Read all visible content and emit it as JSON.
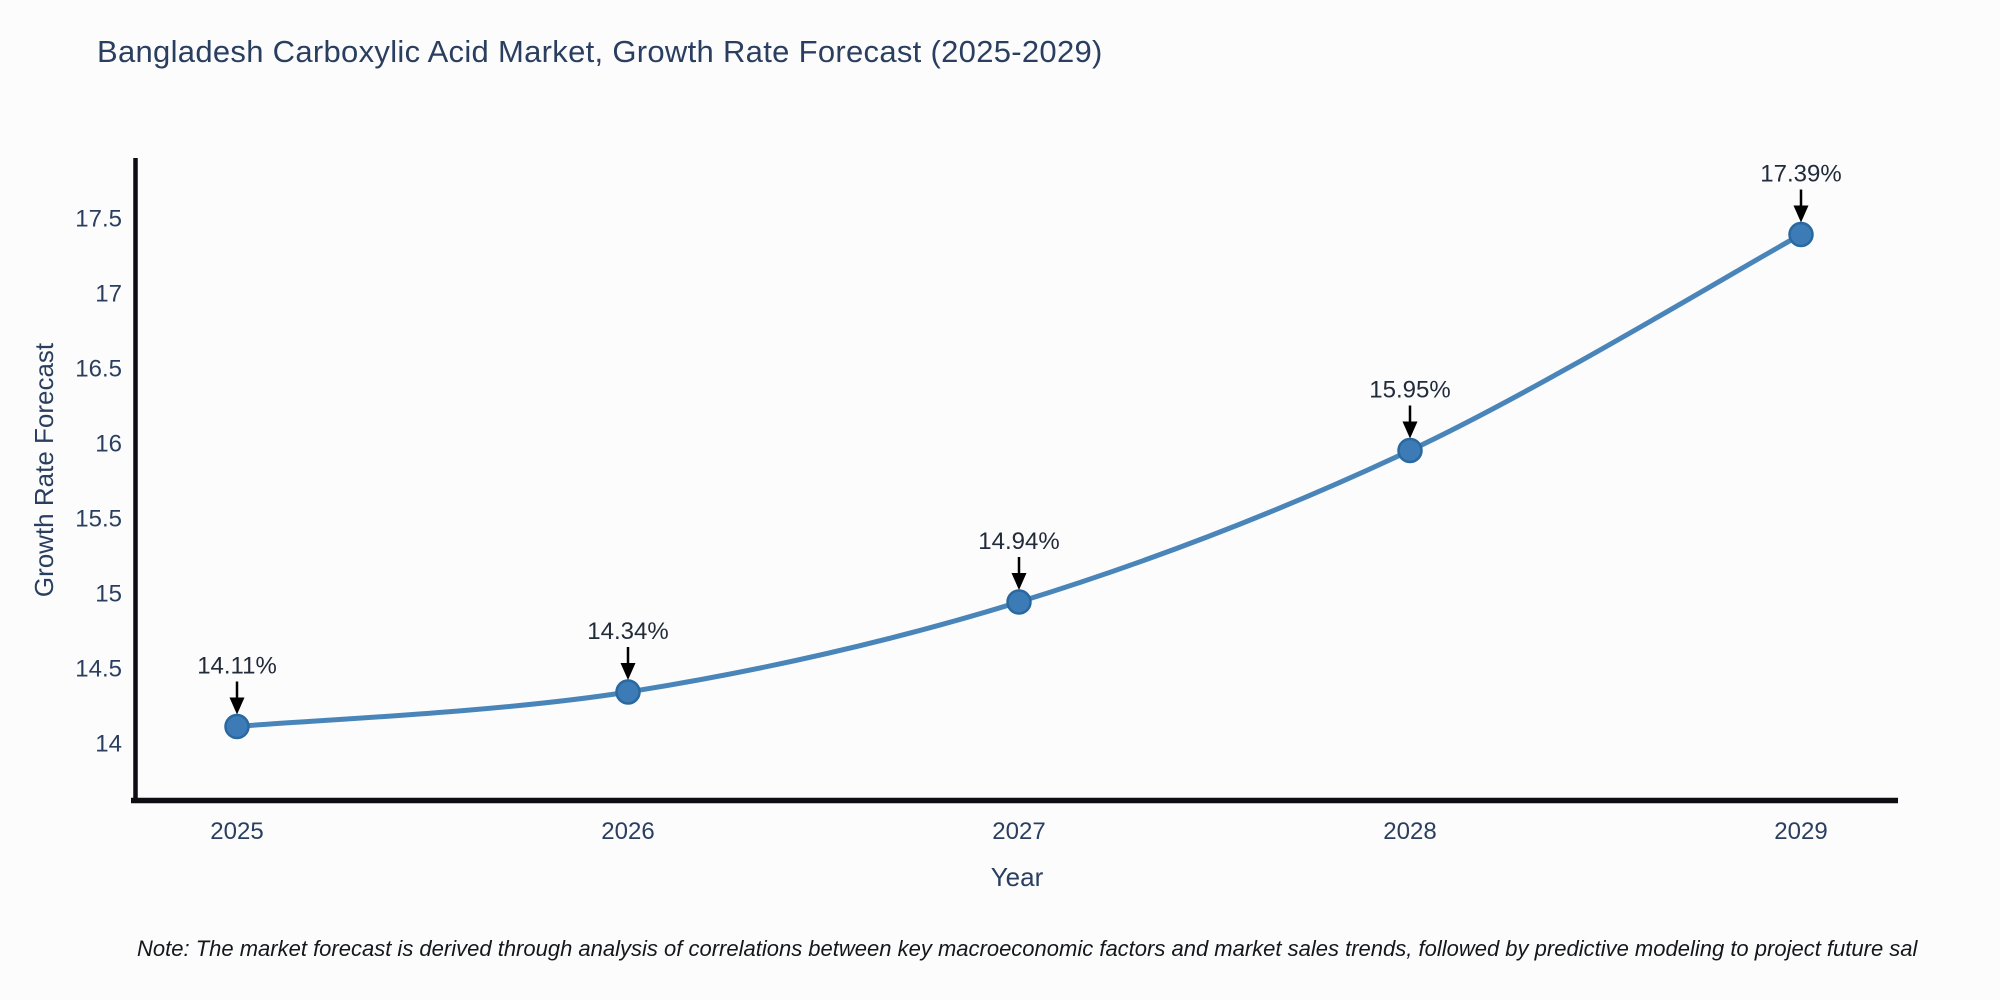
{
  "page": {
    "title": "Bangladesh Carboxylic Acid Market, Growth Rate Forecast (2025-2029)",
    "note": "Note: The market forecast is derived through analysis of correlations between key macroeconomic factors and market sales trends, followed by predictive modeling to project future sal"
  },
  "chart_data": {
    "type": "line",
    "title": "Bangladesh Carboxylic Acid Market, Growth Rate Forecast (2025-2029)",
    "xlabel": "Year",
    "ylabel": "Growth Rate Forecast",
    "categories": [
      "2025",
      "2026",
      "2027",
      "2028",
      "2029"
    ],
    "values": [
      14.11,
      14.34,
      14.94,
      15.95,
      17.39
    ],
    "value_unit": "%",
    "point_labels": [
      "14.11%",
      "14.34%",
      "14.94%",
      "15.95%",
      "17.39%"
    ],
    "yticks": [
      "14",
      "14.5",
      "15",
      "15.5",
      "16",
      "16.5",
      "17",
      "17.5"
    ],
    "ytick_values": [
      14,
      14.5,
      15,
      15.5,
      16,
      16.5,
      17,
      17.5
    ],
    "ylim": [
      13.62,
      17.9
    ],
    "grid": false,
    "legend_position": "none",
    "line_shape": "spline",
    "marker_style": "circle",
    "annotation_arrow": "black-down-arrow",
    "colors": {
      "line": "#4a85b9",
      "marker_fill": "#3c7bb5",
      "marker_edge": "#2a699f",
      "axis_line": "#0d0d12",
      "tick_text": "#2a3f5f",
      "annotation_text": "#222b3a",
      "arrow": "#000000",
      "title_text": "#2a3f5f",
      "background": "#fcfcfd"
    }
  }
}
